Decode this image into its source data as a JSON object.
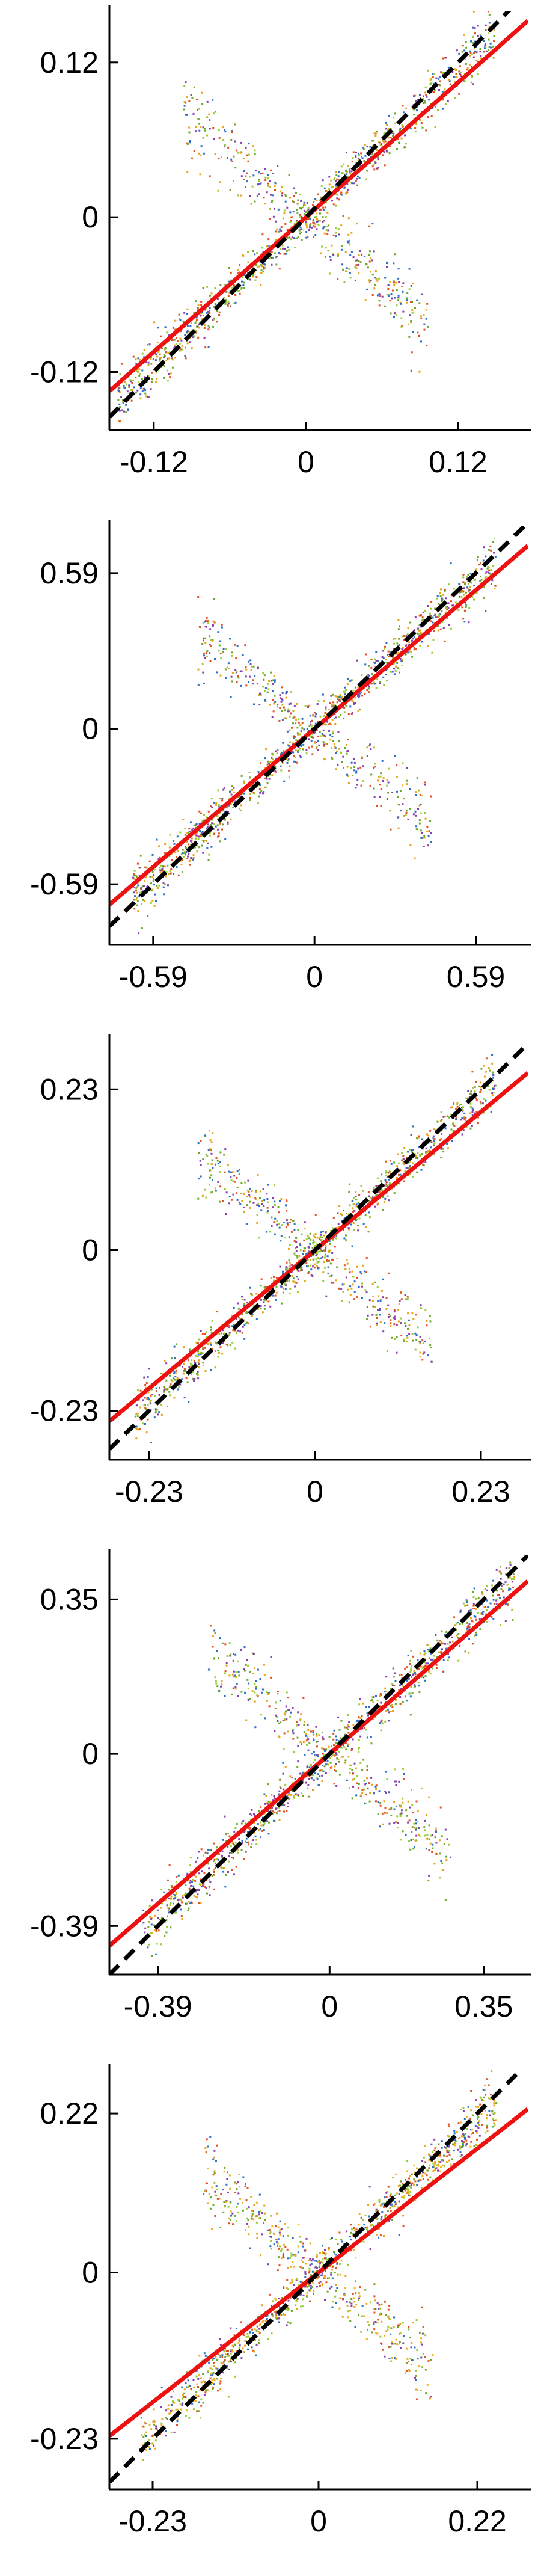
{
  "chart_data": [
    {
      "type": "scatter",
      "x_ticks": [
        "-0.12",
        "0",
        "0.12"
      ],
      "y_ticks": [
        "0.12",
        "0",
        "-0.12"
      ],
      "tick_values": [
        -0.12,
        0,
        0.12
      ],
      "xlim": [
        -0.155,
        0.175
      ],
      "ylim": [
        -0.165,
        0.16
      ],
      "fit_line": {
        "slope": 0.87,
        "intercept": 0.0,
        "color": "#ee1111"
      },
      "identity_line": {
        "slope": 1,
        "intercept": 0,
        "color": "#000000",
        "style": "dashed"
      },
      "point_colors": [
        "#e8a317",
        "#6aaa2a",
        "#2a6fc9",
        "#8a3fb0",
        "#e55020",
        "#9acd32"
      ],
      "series_note": "",
      "approx_trend_points": [
        [
          -0.1,
          -0.095
        ],
        [
          -0.05,
          -0.05
        ],
        [
          0.0,
          0.0
        ],
        [
          0.05,
          0.055
        ],
        [
          0.1,
          0.1
        ]
      ]
    },
    {
      "type": "scatter",
      "x_ticks": [
        "-0.59",
        "0",
        "0.59"
      ],
      "y_ticks": [
        "0.59",
        "0",
        "-0.59"
      ],
      "tick_values": [
        -0.59,
        0,
        0.59
      ],
      "xlim": [
        -0.75,
        0.78
      ],
      "ylim": [
        -0.82,
        0.77
      ],
      "fit_line": {
        "slope": 0.89,
        "intercept": 0.0,
        "color": "#ee1111"
      },
      "identity_line": {
        "slope": 1,
        "intercept": 0,
        "color": "#000000",
        "style": "dashed"
      },
      "point_colors": [
        "#9acd32",
        "#6aaa2a",
        "#2a6fc9",
        "#8a3fb0",
        "#e8a317",
        "#e55020"
      ],
      "series_note": "",
      "approx_trend_points": [
        [
          -0.5,
          -0.45
        ],
        [
          -0.25,
          -0.23
        ],
        [
          0.0,
          0.0
        ],
        [
          0.25,
          0.24
        ],
        [
          0.5,
          0.47
        ]
      ]
    },
    {
      "type": "scatter",
      "x_ticks": [
        "-0.23",
        "0",
        "0.23"
      ],
      "y_ticks": [
        "0.23",
        "0",
        "-0.23"
      ],
      "tick_values": [
        -0.23,
        0,
        0.23
      ],
      "xlim": [
        -0.285,
        0.295
      ],
      "ylim": [
        -0.3,
        0.3
      ],
      "fit_line": {
        "slope": 0.86,
        "intercept": 0.0,
        "color": "#ee1111"
      },
      "identity_line": {
        "slope": 1,
        "intercept": 0,
        "color": "#000000",
        "style": "dashed"
      },
      "point_colors": [
        "#e8a317",
        "#9acd32",
        "#2a6fc9",
        "#8a3fb0",
        "#6aaa2a",
        "#e55020"
      ],
      "series_note": "",
      "approx_trend_points": [
        [
          -0.2,
          -0.19
        ],
        [
          -0.1,
          -0.09
        ],
        [
          0.0,
          0.0
        ],
        [
          0.1,
          0.1
        ],
        [
          0.2,
          0.19
        ]
      ]
    },
    {
      "type": "scatter",
      "x_ticks": [
        "-0.39",
        "0",
        "0.35"
      ],
      "y_ticks": [
        "0.35",
        "0",
        "-0.39"
      ],
      "tick_values_x": [
        -0.39,
        0,
        0.35
      ],
      "tick_values_y": [
        0.35,
        0,
        -0.39
      ],
      "xlim": [
        -0.5,
        0.45
      ],
      "ylim": [
        -0.5,
        0.45
      ],
      "fit_line": {
        "slope": 0.87,
        "intercept": 0.0,
        "color": "#ee1111"
      },
      "identity_line": {
        "slope": 1,
        "intercept": 0,
        "color": "#000000",
        "style": "dashed"
      },
      "point_colors": [
        "#9acd32",
        "#6aaa2a",
        "#e55020",
        "#e8a317",
        "#2a6fc9",
        "#8a3fb0"
      ],
      "series_note": "",
      "approx_trend_points": [
        [
          -0.3,
          -0.28
        ],
        [
          -0.15,
          -0.14
        ],
        [
          0.0,
          0.0
        ],
        [
          0.15,
          0.15
        ],
        [
          0.3,
          0.29
        ]
      ]
    },
    {
      "type": "scatter",
      "x_ticks": [
        "-0.23",
        "0",
        "0.22"
      ],
      "y_ticks": [
        "0.22",
        "0",
        "-0.23"
      ],
      "tick_values_x": [
        -0.23,
        0,
        0.22
      ],
      "tick_values_y": [
        0.22,
        0,
        -0.23
      ],
      "xlim": [
        -0.29,
        0.29
      ],
      "ylim": [
        -0.3,
        0.28
      ],
      "fit_line": {
        "slope": 0.78,
        "intercept": 0.0,
        "color": "#ee1111"
      },
      "identity_line": {
        "slope": 1,
        "intercept": 0,
        "color": "#000000",
        "style": "dashed"
      },
      "point_colors": [
        "#e8a317",
        "#f0b020",
        "#9acd32",
        "#6aaa2a",
        "#2a6fc9",
        "#8a3fb0",
        "#e55020"
      ],
      "series_note": "",
      "approx_trend_points": [
        [
          -0.2,
          -0.18
        ],
        [
          -0.1,
          -0.08
        ],
        [
          0.0,
          0.0
        ],
        [
          0.1,
          0.1
        ],
        [
          0.2,
          0.19
        ]
      ]
    }
  ]
}
